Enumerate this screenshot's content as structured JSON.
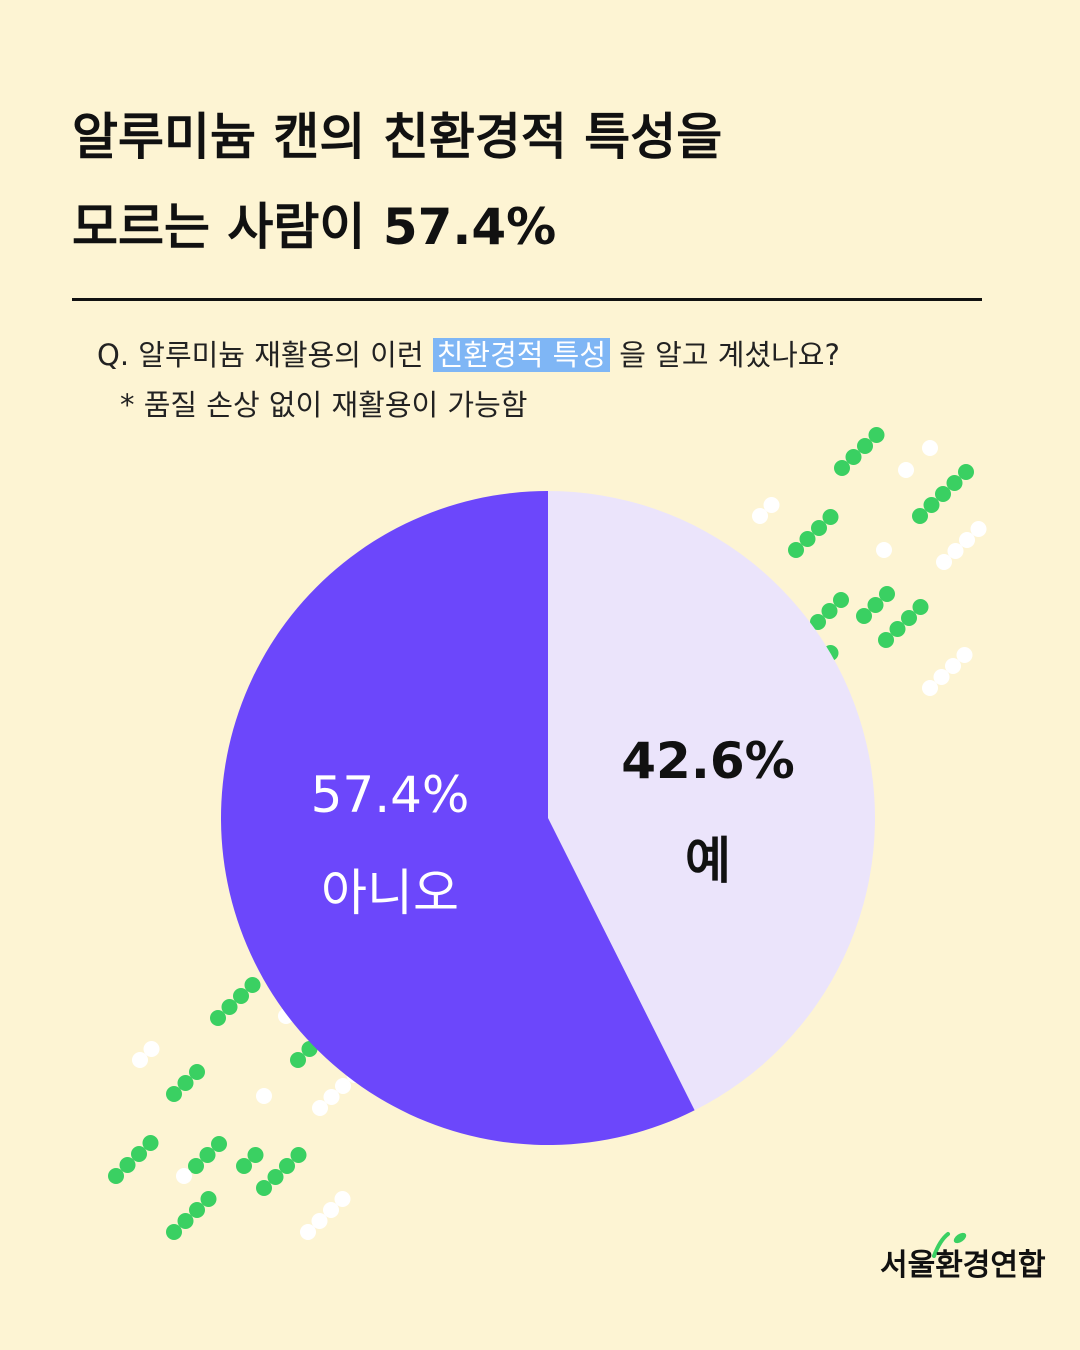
{
  "title": {
    "line1": "알루미늄 캔의 친환경적 특성을",
    "line2": "모르는 사람이 57.4%"
  },
  "question": {
    "prefix": "Q. 알루미늄 재활용의 이런",
    "highlight": "친환경적 특성",
    "suffix": "을 알고 계셨나요?",
    "note": "* 품질 손상 없이 재활용이 가능함"
  },
  "chart_data": {
    "type": "pie",
    "slices": [
      {
        "label": "예",
        "value": 42.6,
        "value_label": "42.6%",
        "color": "#ebe4fb",
        "text_color": "#111111"
      },
      {
        "label": "아니오",
        "value": 57.4,
        "value_label": "57.4%",
        "color": "#6c47fb",
        "text_color": "#ffffff"
      }
    ]
  },
  "colors": {
    "background": "#fdf4d3",
    "accent_green": "#3ad062",
    "highlight_blue": "#7fb6f5"
  },
  "logo": {
    "text": "서울환경연합"
  }
}
